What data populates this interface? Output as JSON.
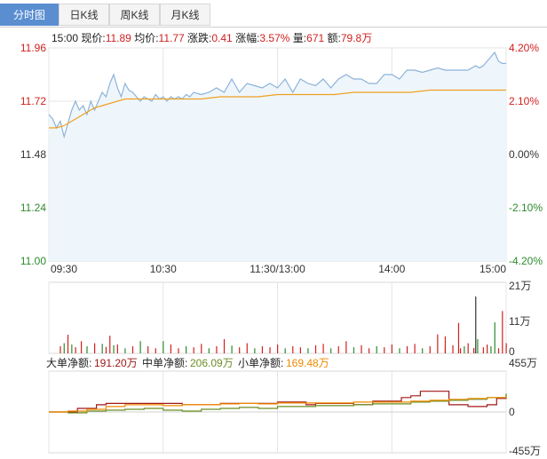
{
  "tabs": [
    {
      "label": "分时图",
      "active": true
    },
    {
      "label": "日K线",
      "active": false
    },
    {
      "label": "周K线",
      "active": false
    },
    {
      "label": "月K线",
      "active": false
    }
  ],
  "info": {
    "time": "15:00",
    "price_label": "现价:",
    "price": "11.89",
    "avg_label": "均价:",
    "avg": "11.77",
    "change_label": "涨跌:",
    "change": "0.41",
    "pct_label": "涨幅:",
    "pct": "3.57%",
    "vol_label": "量:",
    "vol": "671",
    "amount_label": "额:",
    "amount": "79.8万"
  },
  "colors": {
    "up": "#d12020",
    "down": "#2e8b2e",
    "flat": "#333333",
    "price_line": "#8db3d8",
    "avg_line": "#f0a020",
    "fill": "#eef6fc"
  },
  "chart_data": [
    {
      "type": "line",
      "title": "",
      "x_ticks": [
        "09:30",
        "10:30",
        "11:30/13:00",
        "14:00",
        "15:00"
      ],
      "y_left_ticks": [
        "11.96",
        "11.72",
        "11.48",
        "11.24",
        "11.00"
      ],
      "y_right_ticks": [
        "4.20%",
        "2.10%",
        "0.00%",
        "-2.10%",
        "-4.20%"
      ],
      "ylim": [
        11.0,
        11.96
      ],
      "prev_close": 11.48,
      "xlim": [
        0,
        240
      ],
      "series": [
        {
          "name": "price",
          "x": [
            0,
            2,
            4,
            6,
            8,
            10,
            12,
            14,
            16,
            18,
            20,
            22,
            24,
            26,
            28,
            30,
            32,
            34,
            36,
            38,
            40,
            42,
            44,
            46,
            48,
            50,
            52,
            54,
            56,
            58,
            60,
            62,
            64,
            66,
            68,
            70,
            72,
            74,
            76,
            80,
            84,
            88,
            92,
            96,
            100,
            104,
            108,
            112,
            116,
            120,
            124,
            128,
            132,
            136,
            140,
            144,
            148,
            152,
            156,
            160,
            164,
            168,
            172,
            176,
            180,
            184,
            188,
            192,
            196,
            200,
            204,
            208,
            212,
            216,
            220,
            224,
            226,
            228,
            230,
            232,
            234,
            236,
            238,
            240
          ],
          "y": [
            11.66,
            11.64,
            11.6,
            11.63,
            11.56,
            11.62,
            11.68,
            11.72,
            11.68,
            11.7,
            11.66,
            11.72,
            11.68,
            11.72,
            11.76,
            11.74,
            11.8,
            11.84,
            11.78,
            11.74,
            11.8,
            11.77,
            11.76,
            11.74,
            11.72,
            11.74,
            11.73,
            11.72,
            11.75,
            11.73,
            11.74,
            11.72,
            11.74,
            11.73,
            11.74,
            11.73,
            11.75,
            11.74,
            11.76,
            11.75,
            11.76,
            11.78,
            11.76,
            11.82,
            11.76,
            11.8,
            11.79,
            11.78,
            11.8,
            11.78,
            11.82,
            11.76,
            11.82,
            11.8,
            11.79,
            11.82,
            11.78,
            11.82,
            11.84,
            11.82,
            11.82,
            11.8,
            11.8,
            11.84,
            11.84,
            11.82,
            11.86,
            11.86,
            11.85,
            11.86,
            11.87,
            11.86,
            11.86,
            11.86,
            11.86,
            11.88,
            11.87,
            11.88,
            11.9,
            11.92,
            11.94,
            11.9,
            11.89,
            11.89
          ]
        },
        {
          "name": "avg",
          "x": [
            0,
            4,
            8,
            12,
            16,
            20,
            24,
            28,
            32,
            36,
            40,
            50,
            60,
            70,
            80,
            90,
            100,
            110,
            120,
            130,
            140,
            150,
            160,
            170,
            180,
            190,
            200,
            210,
            220,
            230,
            240
          ],
          "y": [
            11.6,
            11.6,
            11.61,
            11.63,
            11.65,
            11.67,
            11.69,
            11.7,
            11.71,
            11.72,
            11.73,
            11.73,
            11.73,
            11.73,
            11.73,
            11.74,
            11.74,
            11.74,
            11.75,
            11.75,
            11.75,
            11.75,
            11.76,
            11.76,
            11.76,
            11.76,
            11.77,
            11.77,
            11.77,
            11.77,
            11.77
          ]
        }
      ]
    },
    {
      "type": "bar",
      "title": "",
      "y_ticks": [
        "21万",
        "11万",
        "0"
      ],
      "ylim": [
        0,
        21
      ],
      "bars": [
        {
          "x": 6,
          "v": 2.1,
          "d": "up"
        },
        {
          "x": 8,
          "v": 3.0,
          "d": "down"
        },
        {
          "x": 10,
          "v": 5.5,
          "d": "up"
        },
        {
          "x": 12,
          "v": 2.6,
          "d": "down"
        },
        {
          "x": 14,
          "v": 1.8,
          "d": "up"
        },
        {
          "x": 17,
          "v": 3.6,
          "d": "up"
        },
        {
          "x": 20,
          "v": 2.1,
          "d": "down"
        },
        {
          "x": 24,
          "v": 3.0,
          "d": "up"
        },
        {
          "x": 28,
          "v": 2.8,
          "d": "down"
        },
        {
          "x": 30,
          "v": 1.9,
          "d": "up"
        },
        {
          "x": 32,
          "v": 5.2,
          "d": "up"
        },
        {
          "x": 34,
          "v": 2.4,
          "d": "down"
        },
        {
          "x": 36,
          "v": 2.6,
          "d": "up"
        },
        {
          "x": 40,
          "v": 1.5,
          "d": "down"
        },
        {
          "x": 44,
          "v": 2.1,
          "d": "up"
        },
        {
          "x": 48,
          "v": 3.6,
          "d": "down"
        },
        {
          "x": 52,
          "v": 2.1,
          "d": "up"
        },
        {
          "x": 56,
          "v": 1.5,
          "d": "up"
        },
        {
          "x": 60,
          "v": 3.6,
          "d": "down"
        },
        {
          "x": 64,
          "v": 2.6,
          "d": "up"
        },
        {
          "x": 68,
          "v": 1.5,
          "d": "up"
        },
        {
          "x": 72,
          "v": 2.1,
          "d": "down"
        },
        {
          "x": 76,
          "v": 1.8,
          "d": "up"
        },
        {
          "x": 80,
          "v": 2.8,
          "d": "up"
        },
        {
          "x": 84,
          "v": 1.5,
          "d": "down"
        },
        {
          "x": 88,
          "v": 2.1,
          "d": "up"
        },
        {
          "x": 92,
          "v": 4.2,
          "d": "up"
        },
        {
          "x": 96,
          "v": 2.3,
          "d": "down"
        },
        {
          "x": 100,
          "v": 1.8,
          "d": "up"
        },
        {
          "x": 104,
          "v": 3.0,
          "d": "up"
        },
        {
          "x": 108,
          "v": 1.5,
          "d": "down"
        },
        {
          "x": 112,
          "v": 2.1,
          "d": "up"
        },
        {
          "x": 116,
          "v": 1.8,
          "d": "up"
        },
        {
          "x": 120,
          "v": 2.6,
          "d": "up"
        },
        {
          "x": 124,
          "v": 1.5,
          "d": "down"
        },
        {
          "x": 128,
          "v": 2.1,
          "d": "up"
        },
        {
          "x": 132,
          "v": 1.8,
          "d": "up"
        },
        {
          "x": 136,
          "v": 1.5,
          "d": "down"
        },
        {
          "x": 140,
          "v": 2.4,
          "d": "up"
        },
        {
          "x": 144,
          "v": 2.8,
          "d": "up"
        },
        {
          "x": 148,
          "v": 1.5,
          "d": "down"
        },
        {
          "x": 152,
          "v": 2.1,
          "d": "up"
        },
        {
          "x": 156,
          "v": 3.6,
          "d": "up"
        },
        {
          "x": 160,
          "v": 1.8,
          "d": "down"
        },
        {
          "x": 164,
          "v": 2.4,
          "d": "up"
        },
        {
          "x": 168,
          "v": 1.5,
          "d": "up"
        },
        {
          "x": 172,
          "v": 2.1,
          "d": "down"
        },
        {
          "x": 176,
          "v": 1.8,
          "d": "up"
        },
        {
          "x": 180,
          "v": 2.6,
          "d": "up"
        },
        {
          "x": 184,
          "v": 1.5,
          "d": "down"
        },
        {
          "x": 188,
          "v": 2.1,
          "d": "up"
        },
        {
          "x": 192,
          "v": 2.8,
          "d": "up"
        },
        {
          "x": 196,
          "v": 1.5,
          "d": "down"
        },
        {
          "x": 200,
          "v": 2.1,
          "d": "up"
        },
        {
          "x": 204,
          "v": 5.6,
          "d": "up"
        },
        {
          "x": 208,
          "v": 1.8,
          "d": "down"
        },
        {
          "x": 212,
          "v": 2.4,
          "d": "up"
        },
        {
          "x": 216,
          "v": 1.5,
          "d": "up"
        },
        {
          "x": 218,
          "v": 2.1,
          "d": "down"
        },
        {
          "x": 220,
          "v": 3.0,
          "d": "up"
        },
        {
          "x": 223,
          "v": 1.6,
          "d": "up"
        },
        {
          "x": 224,
          "v": 16.8,
          "d": "flat"
        },
        {
          "x": 225,
          "v": 4.2,
          "d": "down"
        },
        {
          "x": 228,
          "v": 1.8,
          "d": "up"
        },
        {
          "x": 230,
          "v": 2.6,
          "d": "up"
        },
        {
          "x": 232,
          "v": 2.1,
          "d": "down"
        },
        {
          "x": 236,
          "v": 1.5,
          "d": "up"
        },
        {
          "x": 240,
          "v": 3.0,
          "d": "up"
        },
        {
          "x": 208,
          "v": 5.0,
          "d": "up"
        },
        {
          "x": 215,
          "v": 9.0,
          "d": "up"
        },
        {
          "x": 234,
          "v": 9.2,
          "d": "down"
        },
        {
          "x": 238,
          "v": 12.5,
          "d": "up"
        }
      ]
    },
    {
      "type": "line",
      "title": "",
      "legend": [
        {
          "label": "大单净额:",
          "value": "191.20万",
          "color": "#a01818"
        },
        {
          "label": "中单净额:",
          "value": "206.09万",
          "color": "#6b8e23"
        },
        {
          "label": "小单净额:",
          "value": "169.48万",
          "color": "#f08a00"
        }
      ],
      "y_ticks": [
        "455万",
        "0",
        "-455万"
      ],
      "ylim": [
        -455,
        455
      ],
      "series": [
        {
          "name": "大单净额",
          "x": [
            0,
            10,
            15,
            20,
            25,
            30,
            40,
            50,
            60,
            70,
            80,
            90,
            100,
            110,
            120,
            130,
            135,
            140,
            150,
            160,
            170,
            180,
            185,
            190,
            195,
            200,
            205,
            210,
            220,
            225,
            230,
            235,
            240
          ],
          "y": [
            0,
            0,
            40,
            40,
            80,
            95,
            95,
            95,
            95,
            80,
            80,
            95,
            95,
            95,
            110,
            110,
            80,
            95,
            95,
            80,
            120,
            120,
            160,
            180,
            230,
            230,
            230,
            80,
            60,
            60,
            80,
            150,
            191
          ]
        },
        {
          "name": "中单净额",
          "x": [
            0,
            10,
            20,
            30,
            40,
            50,
            60,
            70,
            80,
            90,
            100,
            110,
            120,
            130,
            140,
            150,
            160,
            170,
            180,
            190,
            200,
            210,
            220,
            230,
            240
          ],
          "y": [
            0,
            -10,
            10,
            20,
            30,
            40,
            20,
            10,
            30,
            40,
            50,
            40,
            60,
            60,
            70,
            70,
            80,
            90,
            90,
            110,
            120,
            130,
            140,
            160,
            206
          ]
        },
        {
          "name": "小单净额",
          "x": [
            0,
            10,
            20,
            30,
            40,
            50,
            60,
            70,
            80,
            90,
            100,
            110,
            120,
            130,
            140,
            150,
            160,
            170,
            180,
            190,
            200,
            210,
            220,
            230,
            240
          ],
          "y": [
            0,
            10,
            30,
            60,
            80,
            80,
            70,
            80,
            80,
            90,
            95,
            90,
            100,
            100,
            100,
            100,
            110,
            110,
            110,
            120,
            130,
            140,
            150,
            160,
            169
          ]
        }
      ]
    }
  ]
}
